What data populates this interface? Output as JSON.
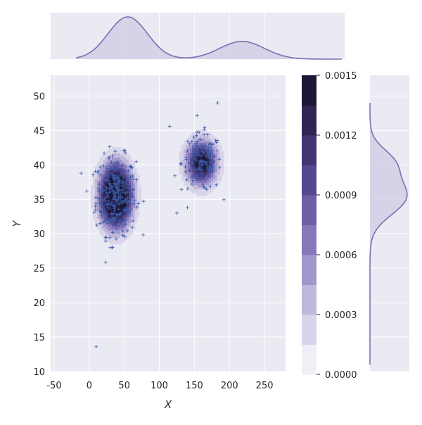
{
  "chart_data": {
    "type": "joint-kde-scatter",
    "xlabel": "X",
    "ylabel": "Y",
    "xlim": [
      -55,
      280
    ],
    "ylim": [
      10,
      53
    ],
    "x_ticks": [
      -50,
      0,
      50,
      100,
      150,
      200,
      250
    ],
    "y_ticks": [
      10,
      15,
      20,
      25,
      30,
      35,
      40,
      45,
      50
    ],
    "grid": true,
    "colorbar": {
      "levels": [
        0.0,
        0.00015,
        0.0003,
        0.00045,
        0.0006,
        0.00075,
        0.0009,
        0.00105,
        0.0012,
        0.00135,
        0.0015
      ],
      "tick_values": [
        0.0,
        0.0003,
        0.0006,
        0.0009,
        0.0012,
        0.0015
      ],
      "tick_labels": [
        "0.0000",
        "0.0003",
        "0.0006",
        "0.0009",
        "0.0012",
        "0.0015"
      ],
      "colors": [
        "#f0eef7",
        "#d9d4ea",
        "#bfb8db",
        "#a197cb",
        "#8678b9",
        "#6e5ea6",
        "#564890",
        "#433673",
        "#302554",
        "#1e1637"
      ]
    },
    "clusters": [
      {
        "cx": 38,
        "cy": 35.5,
        "sx": 15,
        "sy": 3.0,
        "n": 300
      },
      {
        "cx": 160,
        "cy": 40.3,
        "sx": 15,
        "sy": 2.2,
        "n": 140
      }
    ],
    "outliers": [
      [
        10,
        13.6
      ],
      [
        30,
        28
      ],
      [
        125,
        33
      ],
      [
        140,
        33.8
      ],
      [
        115,
        45.6
      ],
      [
        183,
        49
      ]
    ],
    "x_marginal_peaks": [
      55,
      218
    ],
    "colors": {
      "kde_line": "#7b6fb3",
      "kde_fill": "#c8c2e0",
      "scatter_point": "#3b5ba9",
      "panel_bg": "#eaeaf2",
      "grid": "#ffffff"
    }
  }
}
